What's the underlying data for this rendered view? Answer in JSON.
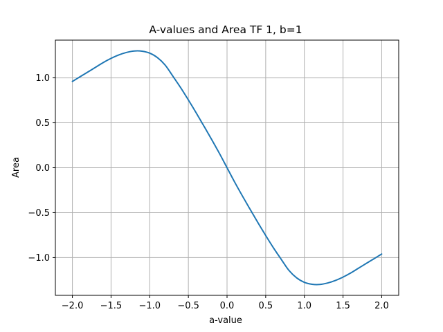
{
  "chart_data": {
    "type": "line",
    "title": "A-values and Area TF 1, b=1",
    "xlabel": "a-value",
    "ylabel": "Area",
    "xlim": [
      -2.22,
      2.22
    ],
    "ylim": [
      -1.42,
      1.42
    ],
    "grid": true,
    "x_ticks": [
      -2.0,
      -1.5,
      -1.0,
      -0.5,
      0.0,
      0.5,
      1.0,
      1.5,
      2.0
    ],
    "x_tick_labels": [
      "−2.0",
      "−1.5",
      "−1.0",
      "−0.5",
      "0.0",
      "0.5",
      "1.0",
      "1.5",
      "2.0"
    ],
    "y_ticks": [
      1.0,
      0.5,
      0.0,
      -0.5,
      -1.0
    ],
    "y_tick_labels": [
      "1.0",
      "0.5",
      "0.0",
      "−0.5",
      "−1.0"
    ],
    "series": [
      {
        "color": "#1f77b4",
        "x": [
          -2.0,
          -1.9,
          -1.8,
          -1.7,
          -1.6,
          -1.5,
          -1.4,
          -1.3,
          -1.2,
          -1.1,
          -1.0,
          -0.9,
          -0.8,
          -0.7,
          -0.6,
          -0.5,
          -0.4,
          -0.3,
          -0.2,
          -0.1,
          0.0,
          0.1,
          0.2,
          0.3,
          0.4,
          0.5,
          0.6,
          0.7,
          0.8,
          0.9,
          1.0,
          1.1,
          1.2,
          1.3,
          1.4,
          1.5,
          1.6,
          1.7,
          1.8,
          1.9,
          2.0
        ],
        "y": [
          0.96,
          1.013,
          1.065,
          1.118,
          1.171,
          1.217,
          1.255,
          1.283,
          1.299,
          1.297,
          1.275,
          1.225,
          1.142,
          1.018,
          0.891,
          0.754,
          0.612,
          0.465,
          0.316,
          0.162,
          0.0,
          -0.162,
          -0.316,
          -0.465,
          -0.612,
          -0.754,
          -0.891,
          -1.018,
          -1.142,
          -1.225,
          -1.275,
          -1.297,
          -1.299,
          -1.283,
          -1.255,
          -1.217,
          -1.171,
          -1.118,
          -1.065,
          -1.013,
          -0.96
        ]
      }
    ]
  }
}
